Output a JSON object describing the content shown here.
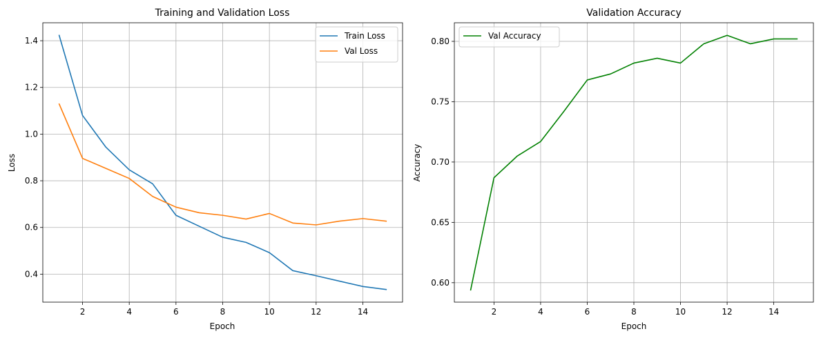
{
  "chart_data": [
    {
      "type": "line",
      "title": "Training and Validation Loss",
      "xlabel": "Epoch",
      "ylabel": "Loss",
      "x": [
        1,
        2,
        3,
        4,
        5,
        6,
        7,
        8,
        9,
        10,
        11,
        12,
        13,
        14,
        15
      ],
      "xlim": [
        0.3,
        15.7
      ],
      "ylim": [
        0.28,
        1.477
      ],
      "xticks": [
        2,
        4,
        6,
        8,
        10,
        12,
        14
      ],
      "yticks": [
        0.4,
        0.6,
        0.8,
        1.0,
        1.2,
        1.4
      ],
      "ytick_labels": [
        "0.4",
        "0.6",
        "0.8",
        "1.0",
        "1.2",
        "1.4"
      ],
      "grid": true,
      "legend_position": "upper right",
      "series": [
        {
          "name": "Train Loss",
          "color": "#1f77b4",
          "values": [
            1.423,
            1.08,
            0.944,
            0.847,
            0.787,
            0.652,
            0.605,
            0.558,
            0.536,
            0.492,
            0.415,
            0.393,
            0.37,
            0.347,
            0.334
          ]
        },
        {
          "name": "Val Loss",
          "color": "#ff7f0e",
          "values": [
            1.129,
            0.896,
            0.853,
            0.81,
            0.733,
            0.687,
            0.663,
            0.652,
            0.636,
            0.66,
            0.619,
            0.611,
            0.627,
            0.638,
            0.627
          ]
        }
      ]
    },
    {
      "type": "line",
      "title": "Validation Accuracy",
      "xlabel": "Epoch",
      "ylabel": "Accuracy",
      "x": [
        1,
        2,
        3,
        4,
        5,
        6,
        7,
        8,
        9,
        10,
        11,
        12,
        13,
        14,
        15
      ],
      "xlim": [
        0.3,
        15.7
      ],
      "ylim": [
        0.5839,
        0.8154
      ],
      "xticks": [
        2,
        4,
        6,
        8,
        10,
        12,
        14
      ],
      "yticks": [
        0.6,
        0.65,
        0.7,
        0.75,
        0.8
      ],
      "ytick_labels": [
        "0.60",
        "0.65",
        "0.70",
        "0.75",
        "0.80"
      ],
      "grid": true,
      "legend_position": "upper left",
      "series": [
        {
          "name": "Val Accuracy",
          "color": "#008000",
          "values": [
            0.594,
            0.687,
            0.705,
            0.717,
            0.742,
            0.768,
            0.773,
            0.782,
            0.786,
            0.782,
            0.798,
            0.805,
            0.798,
            0.802,
            0.802
          ]
        }
      ]
    }
  ]
}
